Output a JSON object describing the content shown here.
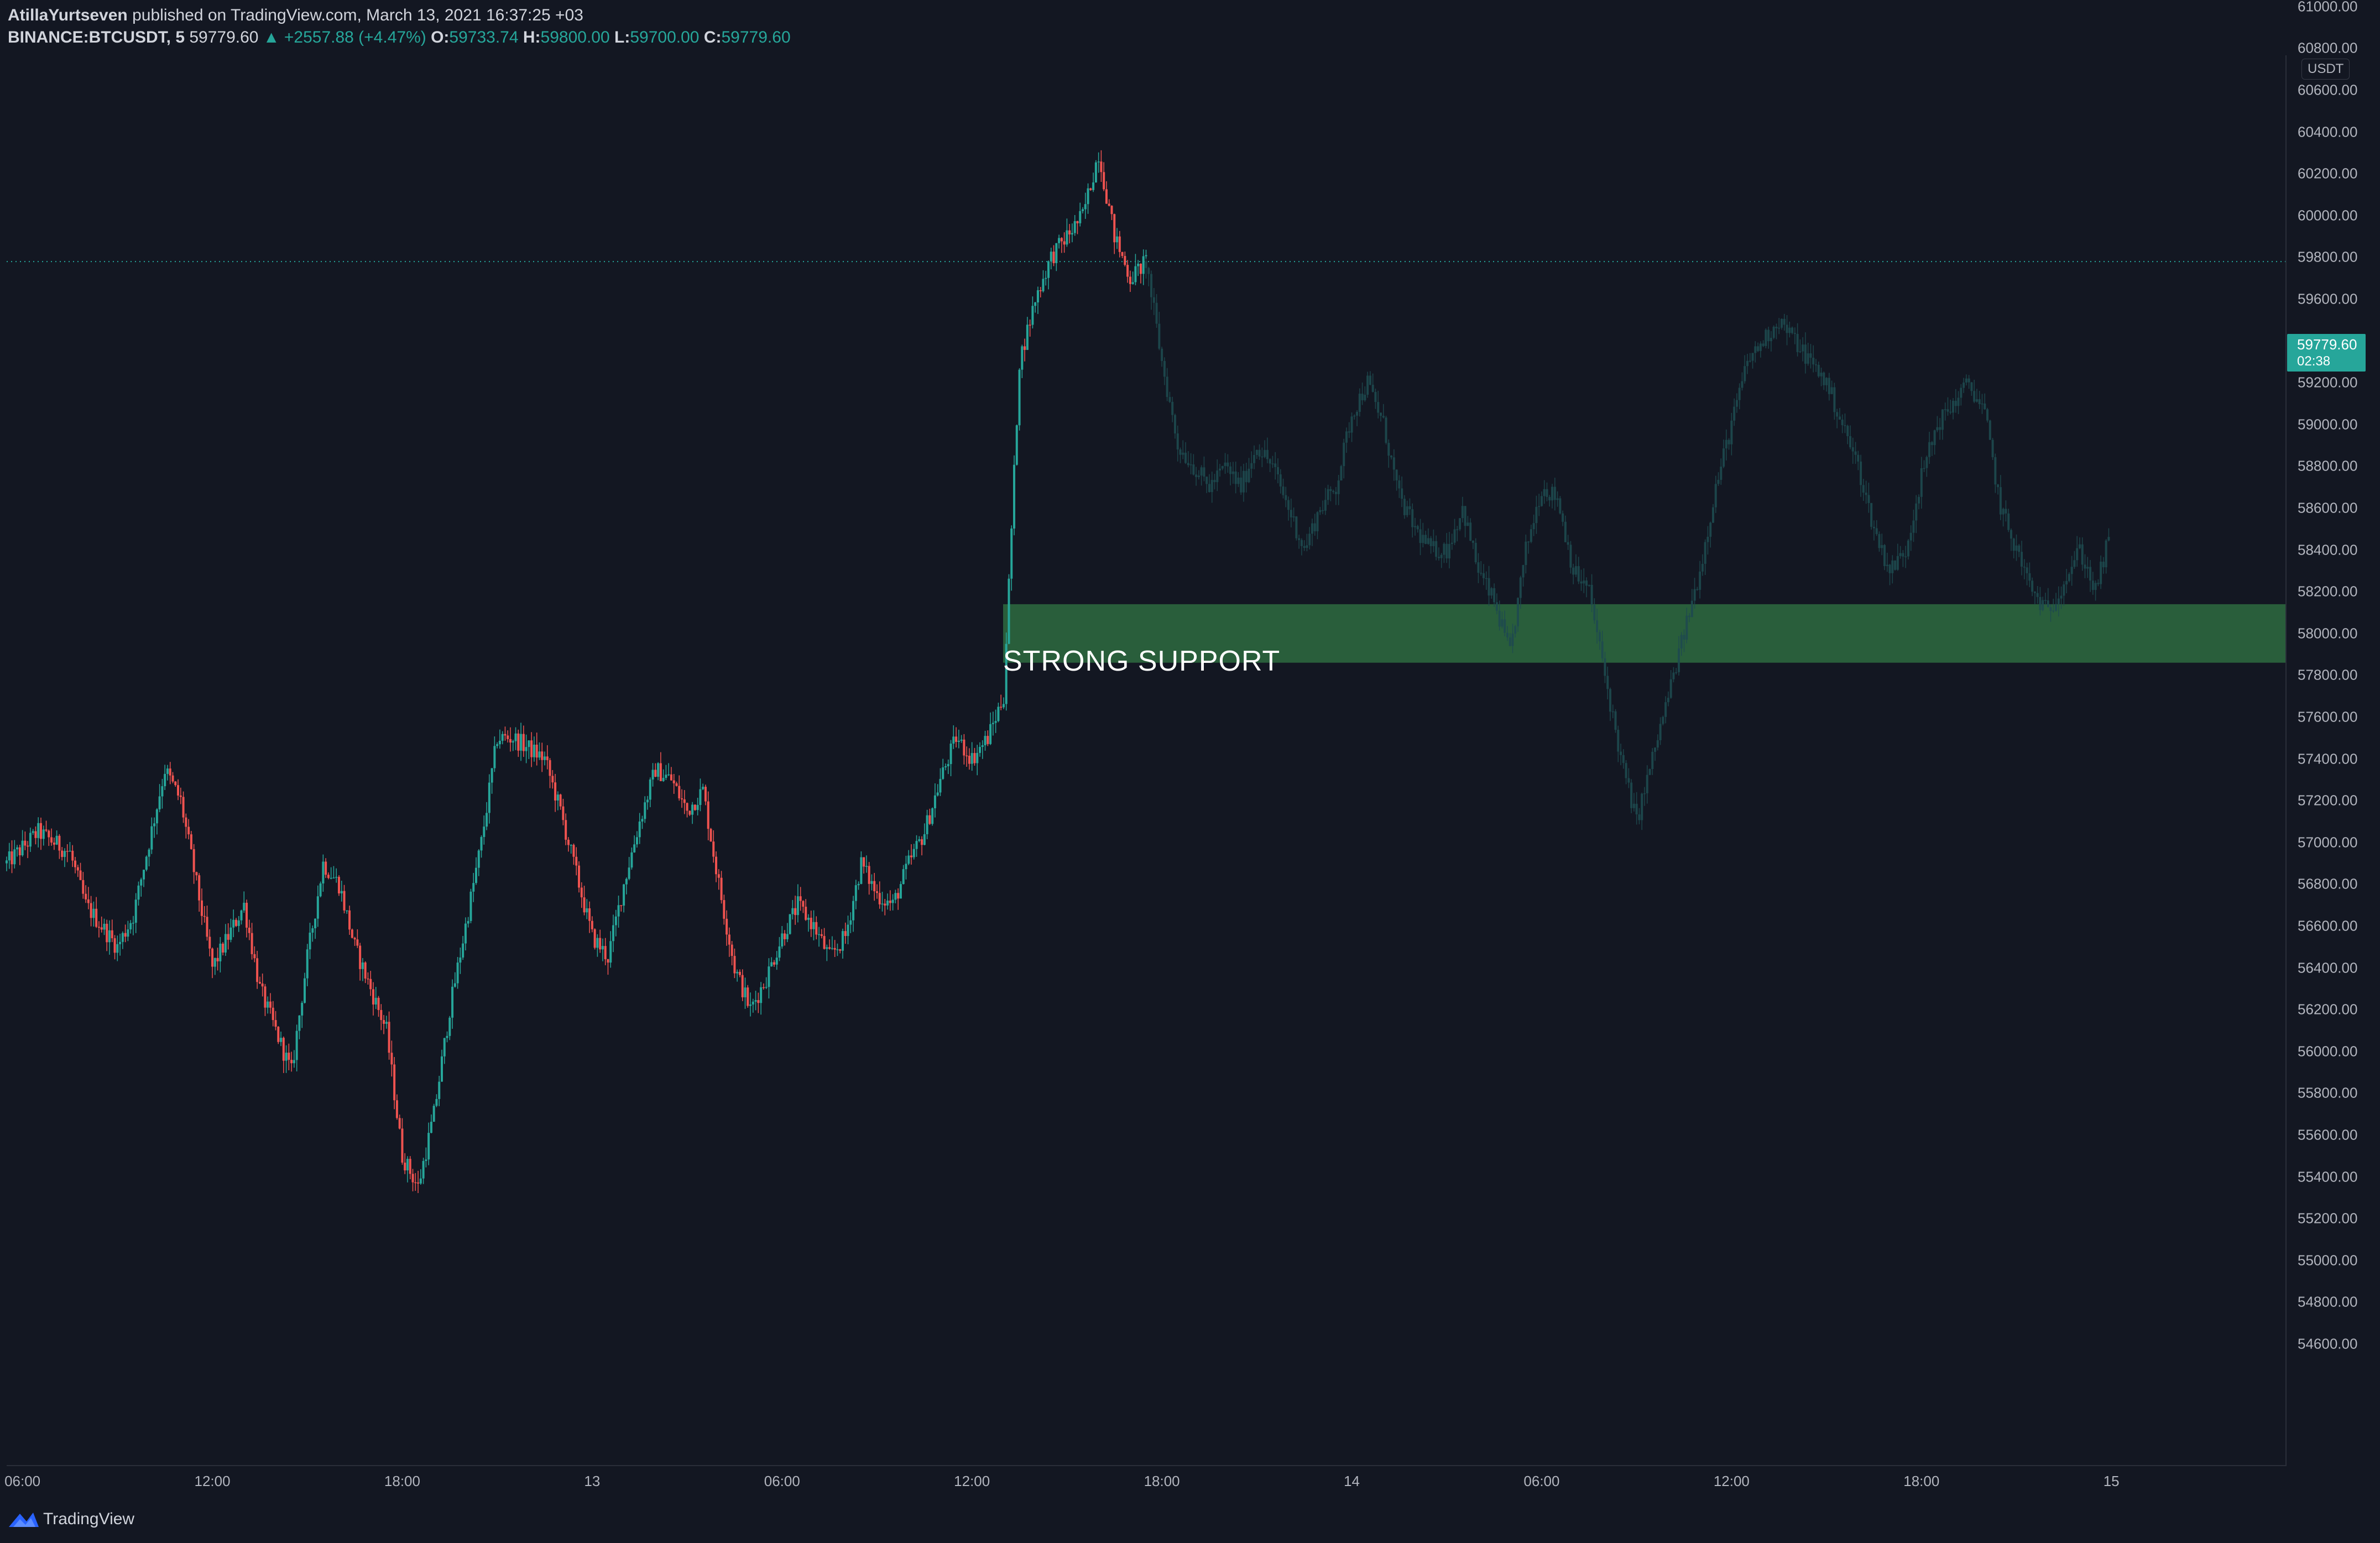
{
  "header": {
    "author": "AtillaYurtseven",
    "published_text": " published on TradingView.com, March 13, 2021 16:37:25 +03",
    "symbol": "BINANCE:BTCUSDT, 5",
    "last": "59779.60",
    "change": "▲ +2557.88 (+4.47%)",
    "o_label": "O:",
    "o": "59733.74",
    "h_label": "H:",
    "h": "59800.00",
    "l_label": "L:",
    "l": "59700.00",
    "c_label": "C:",
    "c": "59779.60"
  },
  "colors": {
    "background": "#131722",
    "up_candle": "#26a69a",
    "down_candle": "#ef5350",
    "projection": "#1e4a4f",
    "support_zone": "#2e6b3f",
    "last_price": "#26a69a"
  },
  "price_axis": {
    "currency": "USDT",
    "last_price": "59779.60",
    "countdown": "02:38"
  },
  "annotation": {
    "text": "STRONG SUPPORT",
    "zone_low": 57860,
    "zone_high": 58140
  },
  "branding": {
    "logo_icon": "tradingview-logo-icon",
    "text": "TradingView"
  },
  "chart_data": {
    "type": "candlestick",
    "symbol": "BINANCE:BTCUSDT",
    "interval": "5",
    "ylim": [
      54400,
      61200
    ],
    "yticks": [
      "61000.00",
      "60800.00",
      "60600.00",
      "60400.00",
      "60200.00",
      "60000.00",
      "59800.00",
      "59600.00",
      "59400.00",
      "59200.00",
      "59000.00",
      "58800.00",
      "58600.00",
      "58400.00",
      "58200.00",
      "58000.00",
      "57800.00",
      "57600.00",
      "57400.00",
      "57200.00",
      "57000.00",
      "56800.00",
      "56600.00",
      "56400.00",
      "56200.00",
      "56000.00",
      "55800.00",
      "55600.00",
      "55400.00",
      "55200.00",
      "55000.00",
      "54800.00",
      "54600.00"
    ],
    "xticks": [
      "06:00",
      "12:00",
      "18:00",
      "13",
      "06:00",
      "12:00",
      "18:00",
      "14",
      "06:00",
      "12:00",
      "18:00",
      "15"
    ],
    "x_range_hours": [
      -0.5,
      71.5
    ],
    "last_price": 59779.6,
    "price_path": [
      [
        -0.5,
        56900
      ],
      [
        0.5,
        57050
      ],
      [
        1.5,
        56950
      ],
      [
        2,
        56700
      ],
      [
        3,
        56500
      ],
      [
        3.5,
        56650
      ],
      [
        4,
        57000
      ],
      [
        4.5,
        57350
      ],
      [
        5,
        57200
      ],
      [
        5.5,
        56800
      ],
      [
        6,
        56400
      ],
      [
        7,
        56700
      ],
      [
        7.5,
        56300
      ],
      [
        8,
        56100
      ],
      [
        8.5,
        55900
      ],
      [
        9,
        56450
      ],
      [
        9.5,
        56900
      ],
      [
        10,
        56800
      ],
      [
        10.5,
        56500
      ],
      [
        11,
        56300
      ],
      [
        11.5,
        56100
      ],
      [
        12,
        55500
      ],
      [
        12.5,
        55350
      ],
      [
        13,
        55700
      ],
      [
        13.5,
        56200
      ],
      [
        14,
        56600
      ],
      [
        14.5,
        57000
      ],
      [
        15,
        57500
      ],
      [
        15.5,
        57500
      ],
      [
        16,
        57450
      ],
      [
        16.5,
        57400
      ],
      [
        17,
        57150
      ],
      [
        17.5,
        56850
      ],
      [
        18,
        56550
      ],
      [
        18.5,
        56450
      ],
      [
        19,
        56800
      ],
      [
        19.5,
        57100
      ],
      [
        20,
        57350
      ],
      [
        20.5,
        57300
      ],
      [
        21,
        57150
      ],
      [
        21.5,
        57250
      ],
      [
        22,
        56800
      ],
      [
        22.5,
        56400
      ],
      [
        23,
        56200
      ],
      [
        23.5,
        56350
      ],
      [
        24,
        56550
      ],
      [
        24.5,
        56700
      ],
      [
        25,
        56600
      ],
      [
        25.5,
        56450
      ],
      [
        26,
        56550
      ],
      [
        26.5,
        56900
      ],
      [
        27,
        56750
      ],
      [
        27.5,
        56700
      ],
      [
        28,
        56900
      ],
      [
        28.5,
        57050
      ],
      [
        29,
        57300
      ],
      [
        29.5,
        57500
      ],
      [
        30,
        57400
      ],
      [
        30.5,
        57500
      ],
      [
        31,
        57700
      ],
      [
        31.5,
        59300
      ],
      [
        32,
        59600
      ],
      [
        32.5,
        59800
      ],
      [
        33,
        59900
      ],
      [
        33.5,
        60000
      ],
      [
        34,
        60300
      ],
      [
        34.5,
        59900
      ],
      [
        35,
        59700
      ],
      [
        35.5,
        59780
      ]
    ],
    "projection_path": [
      [
        35.5,
        59780
      ],
      [
        36,
        59300
      ],
      [
        36.5,
        58900
      ],
      [
        37,
        58800
      ],
      [
        37.5,
        58700
      ],
      [
        38,
        58800
      ],
      [
        38.5,
        58700
      ],
      [
        39,
        58900
      ],
      [
        39.5,
        58800
      ],
      [
        40,
        58600
      ],
      [
        40.5,
        58400
      ],
      [
        41,
        58600
      ],
      [
        41.5,
        58700
      ],
      [
        42,
        59050
      ],
      [
        42.5,
        59200
      ],
      [
        43,
        59000
      ],
      [
        43.5,
        58650
      ],
      [
        44,
        58500
      ],
      [
        44.5,
        58400
      ],
      [
        45,
        58400
      ],
      [
        45.5,
        58600
      ],
      [
        46,
        58300
      ],
      [
        46.5,
        58150
      ],
      [
        47,
        57900
      ],
      [
        47.5,
        58400
      ],
      [
        48,
        58700
      ],
      [
        48.5,
        58650
      ],
      [
        49,
        58300
      ],
      [
        49.5,
        58200
      ],
      [
        50,
        57800
      ],
      [
        50.5,
        57400
      ],
      [
        51,
        57100
      ],
      [
        51.5,
        57400
      ],
      [
        52,
        57700
      ],
      [
        52.5,
        58000
      ],
      [
        53,
        58300
      ],
      [
        53.5,
        58700
      ],
      [
        54,
        59000
      ],
      [
        54.5,
        59300
      ],
      [
        55,
        59400
      ],
      [
        55.5,
        59500
      ],
      [
        56,
        59400
      ],
      [
        56.5,
        59300
      ],
      [
        57,
        59200
      ],
      [
        57.5,
        59000
      ],
      [
        58,
        58800
      ],
      [
        58.5,
        58500
      ],
      [
        59,
        58300
      ],
      [
        59.5,
        58400
      ],
      [
        60,
        58750
      ],
      [
        60.5,
        59000
      ],
      [
        61,
        59100
      ],
      [
        61.5,
        59200
      ],
      [
        62,
        59050
      ],
      [
        62.5,
        58600
      ],
      [
        63,
        58400
      ],
      [
        63.5,
        58200
      ],
      [
        64,
        58100
      ],
      [
        64.5,
        58250
      ],
      [
        65,
        58400
      ],
      [
        65.5,
        58200
      ],
      [
        66,
        58500
      ]
    ]
  }
}
